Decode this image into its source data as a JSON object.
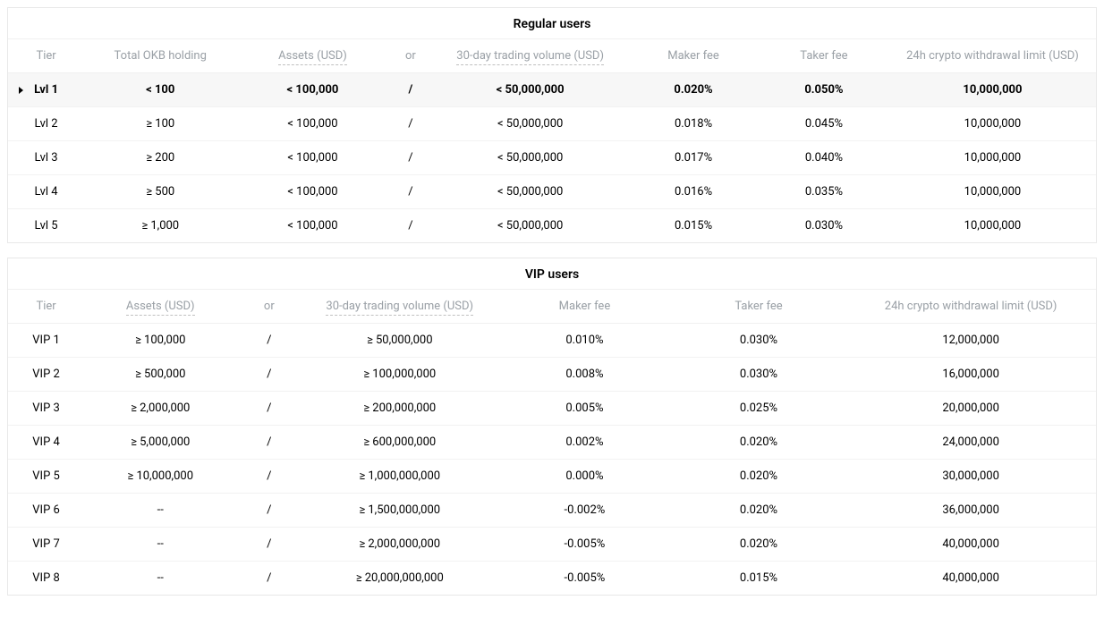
{
  "colors": {
    "border": "#e8e8e8",
    "row_border": "#f2f2f2",
    "header_text": "#9aa0a6",
    "active_bg": "#f7f7f7",
    "text": "#000000",
    "background": "#ffffff"
  },
  "regular": {
    "title": "Regular users",
    "col_widths_pct": [
      7,
      14,
      14,
      4,
      18,
      12,
      12,
      19
    ],
    "headers": {
      "tier": "Tier",
      "okb": "Total OKB holding",
      "assets": "Assets (USD)",
      "or": "or",
      "volume": "30-day trading volume (USD)",
      "maker": "Maker fee",
      "taker": "Taker fee",
      "limit": "24h crypto withdrawal limit (USD)"
    },
    "active_row_index": 0,
    "rows": [
      {
        "tier": "Lvl 1",
        "okb": "< 100",
        "assets": "< 100,000",
        "or": "/",
        "volume": "< 50,000,000",
        "maker": "0.020%",
        "taker": "0.050%",
        "limit": "10,000,000"
      },
      {
        "tier": "Lvl 2",
        "okb": "≥ 100",
        "assets": "< 100,000",
        "or": "/",
        "volume": "< 50,000,000",
        "maker": "0.018%",
        "taker": "0.045%",
        "limit": "10,000,000"
      },
      {
        "tier": "Lvl 3",
        "okb": "≥ 200",
        "assets": "< 100,000",
        "or": "/",
        "volume": "< 50,000,000",
        "maker": "0.017%",
        "taker": "0.040%",
        "limit": "10,000,000"
      },
      {
        "tier": "Lvl 4",
        "okb": "≥ 500",
        "assets": "< 100,000",
        "or": "/",
        "volume": "< 50,000,000",
        "maker": "0.016%",
        "taker": "0.035%",
        "limit": "10,000,000"
      },
      {
        "tier": "Lvl 5",
        "okb": "≥ 1,000",
        "assets": "< 100,000",
        "or": "/",
        "volume": "< 50,000,000",
        "maker": "0.015%",
        "taker": "0.030%",
        "limit": "10,000,000"
      }
    ]
  },
  "vip": {
    "title": "VIP users",
    "col_widths_pct": [
      7,
      14,
      6,
      18,
      16,
      16,
      23
    ],
    "headers": {
      "tier": "Tier",
      "assets": "Assets (USD)",
      "or": "or",
      "volume": "30-day trading volume (USD)",
      "maker": "Maker fee",
      "taker": "Taker fee",
      "limit": "24h crypto withdrawal limit (USD)"
    },
    "rows": [
      {
        "tier": "VIP 1",
        "assets": "≥ 100,000",
        "or": "/",
        "volume": "≥ 50,000,000",
        "maker": "0.010%",
        "taker": "0.030%",
        "limit": "12,000,000"
      },
      {
        "tier": "VIP 2",
        "assets": "≥ 500,000",
        "or": "/",
        "volume": "≥ 100,000,000",
        "maker": "0.008%",
        "taker": "0.030%",
        "limit": "16,000,000"
      },
      {
        "tier": "VIP 3",
        "assets": "≥ 2,000,000",
        "or": "/",
        "volume": "≥ 200,000,000",
        "maker": "0.005%",
        "taker": "0.025%",
        "limit": "20,000,000"
      },
      {
        "tier": "VIP 4",
        "assets": "≥ 5,000,000",
        "or": "/",
        "volume": "≥ 600,000,000",
        "maker": "0.002%",
        "taker": "0.020%",
        "limit": "24,000,000"
      },
      {
        "tier": "VIP 5",
        "assets": "≥ 10,000,000",
        "or": "/",
        "volume": "≥ 1,000,000,000",
        "maker": "0.000%",
        "taker": "0.020%",
        "limit": "30,000,000"
      },
      {
        "tier": "VIP 6",
        "assets": "--",
        "or": "/",
        "volume": "≥ 1,500,000,000",
        "maker": "-0.002%",
        "taker": "0.020%",
        "limit": "36,000,000"
      },
      {
        "tier": "VIP 7",
        "assets": "--",
        "or": "/",
        "volume": "≥ 2,000,000,000",
        "maker": "-0.005%",
        "taker": "0.020%",
        "limit": "40,000,000"
      },
      {
        "tier": "VIP 8",
        "assets": "--",
        "or": "/",
        "volume": "≥ 20,000,000,000",
        "maker": "-0.005%",
        "taker": "0.015%",
        "limit": "40,000,000"
      }
    ]
  }
}
